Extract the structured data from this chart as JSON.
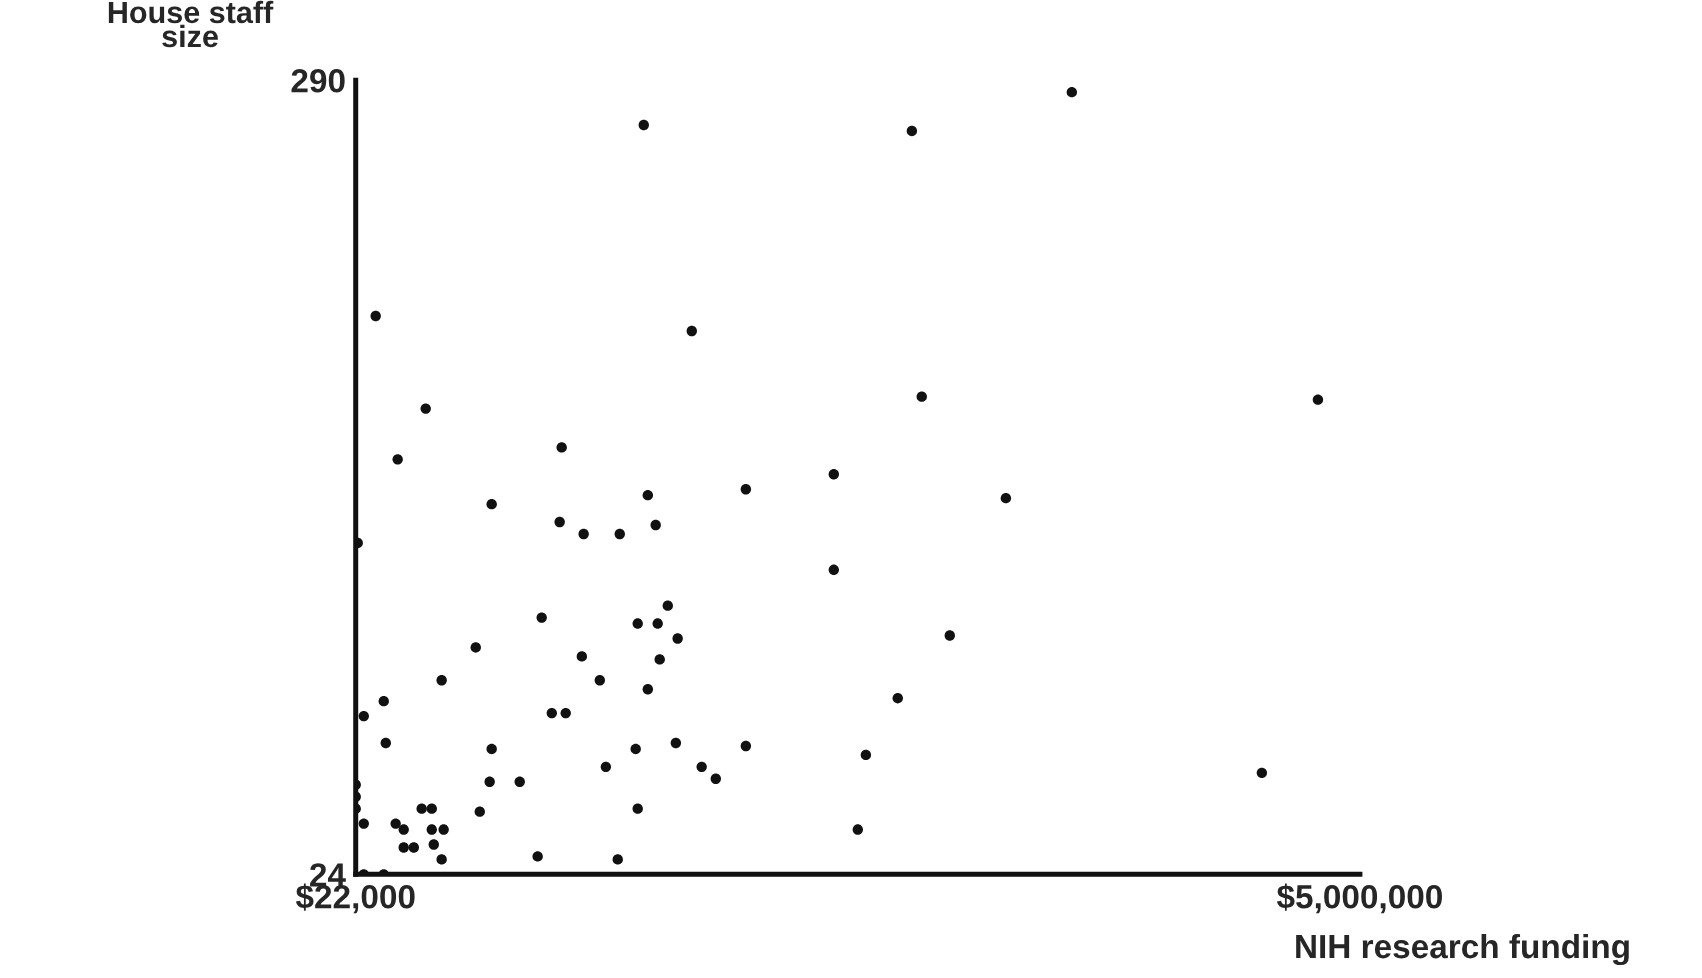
{
  "chart_data": {
    "type": "scatter",
    "xlabel": "NIH research funding",
    "ylabel": "House staff\nsize",
    "xlim": [
      22000,
      5000000
    ],
    "ylim": [
      24,
      290
    ],
    "xticks": [
      {
        "value": 22000,
        "label": "$22,000"
      },
      {
        "value": 5000000,
        "label": "$5,000,000"
      }
    ],
    "yticks": [
      24,
      290
    ],
    "grid": false,
    "marker": "circle",
    "series": [
      {
        "color": "#111111",
        "x": [
          121000,
          369000,
          230000,
          1043000,
          1450000,
          1688000,
          3572000,
          2779000,
          2828000,
          4792000,
          2392000,
          3245000,
          2392000,
          2967000,
          2709000,
          2551000,
          2511000,
          4514000,
          696000,
          1033000,
          1152000,
          1331000,
          1470000,
          1509000,
          1956000,
          32000,
          944000,
          1420000,
          1519000,
          1569000,
          1618000,
          1529000,
          617000,
          1143000,
          1232000,
          1470000,
          448000,
          994000,
          1063000,
          161000,
          62000,
          171000,
          696000,
          1410000,
          1609000,
          1956000,
          1262000,
          1737000,
          1807000,
          686000,
          835000,
          1420000,
          637000,
          349000,
          399000,
          62000,
          220000,
          260000,
          399000,
          458000,
          260000,
          310000,
          409000,
          448000,
          924000,
          1321000,
          62000,
          161000,
          22000,
          22000,
          22000
        ],
        "values": [
          211,
          180,
          163,
          167,
          275,
          206,
          286,
          273,
          184,
          183,
          158,
          150,
          126,
          104,
          83,
          64,
          39,
          58,
          148,
          142,
          138,
          138,
          151,
          141,
          153,
          135,
          110,
          108,
          108,
          114,
          103,
          96,
          100,
          97,
          89,
          86,
          89,
          78,
          78,
          82,
          77,
          68,
          66,
          66,
          68,
          67,
          60,
          60,
          56,
          55,
          55,
          46,
          45,
          46,
          46,
          41,
          41,
          39,
          39,
          39,
          33,
          33,
          34,
          29,
          30,
          29,
          24,
          24,
          54,
          50,
          46
        ]
      }
    ]
  }
}
